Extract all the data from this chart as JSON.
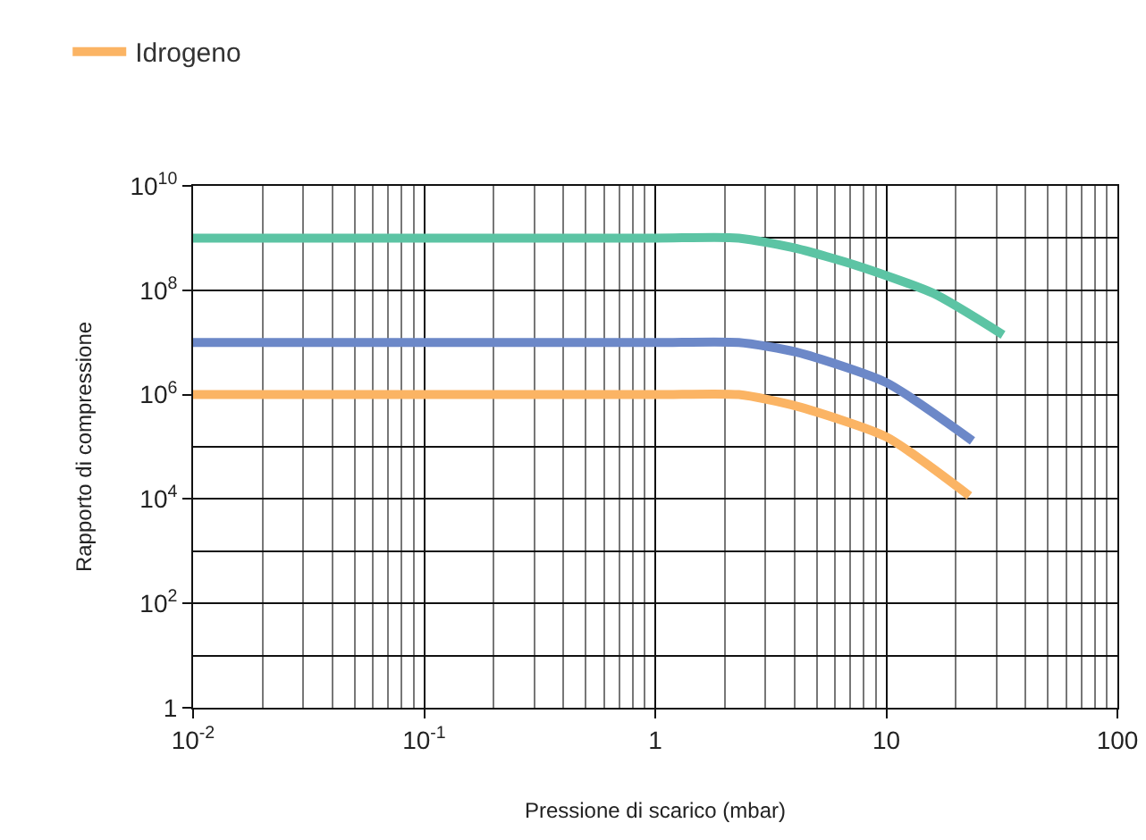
{
  "chart_data": {
    "type": "line",
    "xlabel": "Pressione di scarico (mbar)",
    "ylabel": "Rapporto di compressione",
    "log": "xy",
    "grid": true,
    "legend": "top left",
    "line_style": "solid",
    "marker": "none",
    "xlim": [
      0.01,
      100
    ],
    "xticks": [
      {
        "value": 0.01,
        "label": "10$^{-2}$"
      },
      {
        "value": 0.1,
        "label": "10$^{-1}$"
      },
      1,
      10,
      100
    ],
    "ylim": [
      1,
      10000000000
    ],
    "yticks": [
      1,
      {
        "value": 100,
        "label": "10$^{2}$"
      },
      {
        "value": 10000,
        "label": "10$^{4}$"
      },
      {
        "value": 1000000,
        "label": "10$^{6}$"
      },
      {
        "value": 100000000,
        "label": "10$^{8}$"
      },
      {
        "value": 10000000000,
        "label": "10$^{10}$"
      }
    ],
    "series": [
      {
        "color": "#5cc4a4",
        "x": [
          0.01,
          1,
          2.3,
          4.1,
          7.4,
          16,
          32
        ],
        "values": [
          1000000000,
          1000000000,
          1000000000,
          630000000,
          300000000,
          87000000,
          14000000
        ]
      },
      {
        "color": "#6c88c8",
        "x": [
          0.01,
          1,
          2.3,
          4.1,
          10,
          23.6
        ],
        "values": [
          10000000,
          10000000,
          10000000,
          6500000,
          1700000,
          130000
        ]
      },
      {
        "name": "Idrogeno",
        "color": "#fbb464",
        "x": [
          0.01,
          1,
          2.3,
          4.1,
          10,
          22.9
        ],
        "values": [
          1000000,
          1000000,
          1000000,
          600000,
          155000,
          11500
        ]
      }
    ]
  }
}
